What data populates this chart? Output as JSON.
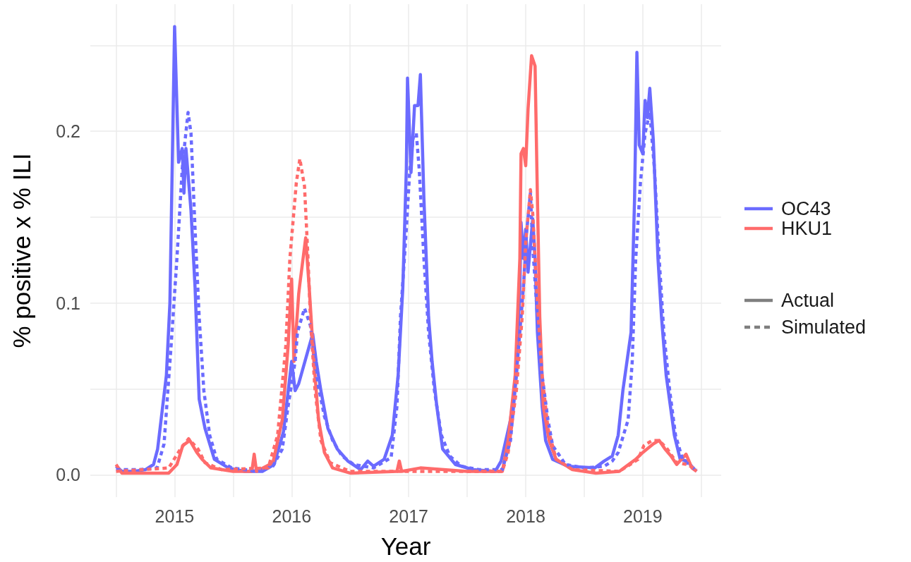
{
  "chart_data": {
    "type": "line",
    "xlabel": "Year",
    "ylabel": "% positive x % ILI",
    "xlim": [
      2014.28,
      2019.67
    ],
    "ylim": [
      -0.013,
      0.274
    ],
    "xticks": [
      {
        "value": 2014.5,
        "label": null
      },
      2015,
      {
        "value": 2015.5,
        "label": null
      },
      2016,
      {
        "value": 2016.5,
        "label": null
      },
      2017,
      {
        "value": 2017.5,
        "label": null
      },
      2018,
      {
        "value": 2018.5,
        "label": null
      },
      2019,
      {
        "value": 2019.5,
        "label": null
      }
    ],
    "yticks": [
      {
        "value": 0,
        "label": "0.0"
      },
      {
        "value": 0.05,
        "label": null
      },
      {
        "value": 0.1,
        "label": "0.1"
      },
      {
        "value": 0.15,
        "label": null
      },
      {
        "value": 0.2,
        "label": "0.2"
      },
      {
        "value": 0.25,
        "label": null
      }
    ],
    "grid": true,
    "legend": "right",
    "marker": "none",
    "series": [
      {
        "name": "OC43",
        "color": "#6b6bff",
        "line_style": "solid",
        "x": [
          2014.5,
          2014.55,
          2014.65,
          2014.75,
          2014.82,
          2014.855,
          2014.93,
          2014.96,
          2015.0,
          2015.034,
          2015.065,
          2015.08,
          2015.097,
          2015.14,
          2015.175,
          2015.21,
          2015.26,
          2015.34,
          2015.46,
          2015.6,
          2015.75,
          2015.85,
          2015.93,
          2016.0,
          2016.03,
          2016.06,
          2016.13,
          2016.18,
          2016.21,
          2016.25,
          2016.31,
          2016.39,
          2016.48,
          2016.59,
          2016.65,
          2016.7,
          2016.79,
          2016.86,
          2016.91,
          2016.95,
          2016.98,
          2016.99,
          2017.02,
          2017.05,
          2017.08,
          2017.1,
          2017.13,
          2017.17,
          2017.2,
          2017.24,
          2017.29,
          2017.4,
          2017.55,
          2017.74,
          2017.79,
          2017.87,
          2017.92,
          2017.95,
          2017.96,
          2017.98,
          2018.0,
          2018.02,
          2018.06,
          2018.08,
          2018.1,
          2018.14,
          2018.17,
          2018.23,
          2018.36,
          2018.59,
          2018.67,
          2018.74,
          2018.79,
          2018.83,
          2018.9,
          2018.93,
          2018.95,
          2018.97,
          2019.0,
          2019.02,
          2019.04,
          2019.06,
          2019.09,
          2019.13,
          2019.16,
          2019.2,
          2019.27,
          2019.32,
          2019.38,
          2019.43,
          2019.46
        ],
        "values": [
          0.005,
          0.002,
          0.002,
          0.003,
          0.006,
          0.015,
          0.058,
          0.1,
          0.261,
          0.182,
          0.19,
          0.164,
          0.19,
          0.154,
          0.109,
          0.044,
          0.027,
          0.009,
          0.004,
          0.002,
          0.002,
          0.006,
          0.025,
          0.066,
          0.049,
          0.053,
          0.07,
          0.082,
          0.066,
          0.049,
          0.027,
          0.015,
          0.008,
          0.003,
          0.008,
          0.005,
          0.009,
          0.023,
          0.058,
          0.109,
          0.178,
          0.231,
          0.176,
          0.215,
          0.215,
          0.233,
          0.161,
          0.092,
          0.066,
          0.04,
          0.015,
          0.006,
          0.003,
          0.002,
          0.008,
          0.032,
          0.058,
          0.109,
          0.147,
          0.126,
          0.143,
          0.118,
          0.149,
          0.126,
          0.083,
          0.04,
          0.02,
          0.009,
          0.005,
          0.004,
          0.008,
          0.011,
          0.023,
          0.049,
          0.083,
          0.161,
          0.246,
          0.192,
          0.187,
          0.218,
          0.208,
          0.225,
          0.195,
          0.126,
          0.092,
          0.058,
          0.023,
          0.009,
          0.008,
          0.004,
          0.002
        ]
      },
      {
        "name": "HKU1",
        "color": "#ff6b6b",
        "line_style": "solid",
        "x": [
          2014.5,
          2014.55,
          2014.95,
          2015.02,
          2015.07,
          2015.13,
          2015.19,
          2015.235,
          2015.31,
          2015.5,
          2015.66,
          2015.68,
          2015.7,
          2015.84,
          2015.92,
          2015.97,
          2016.0,
          2016.02,
          2016.06,
          2016.07,
          2016.12,
          2016.15,
          2016.19,
          2016.23,
          2016.28,
          2016.35,
          2016.5,
          2016.9,
          2016.92,
          2016.94,
          2017.1,
          2017.5,
          2017.8,
          2017.85,
          2017.91,
          2017.95,
          2017.96,
          2017.98,
          2018.0,
          2018.02,
          2018.05,
          2018.08,
          2018.1,
          2018.12,
          2018.15,
          2018.2,
          2018.26,
          2018.4,
          2018.6,
          2018.8,
          2018.86,
          2018.94,
          2019.0,
          2019.09,
          2019.14,
          2019.19,
          2019.24,
          2019.29,
          2019.37,
          2019.42,
          2019.46
        ],
        "values": [
          0.006,
          0.001,
          0.001,
          0.006,
          0.017,
          0.02,
          0.013,
          0.009,
          0.004,
          0.002,
          0.002,
          0.012,
          0.002,
          0.007,
          0.032,
          0.075,
          0.114,
          0.066,
          0.105,
          0.111,
          0.138,
          0.109,
          0.066,
          0.032,
          0.013,
          0.004,
          0.001,
          0.002,
          0.008,
          0.002,
          0.004,
          0.002,
          0.002,
          0.02,
          0.058,
          0.126,
          0.187,
          0.19,
          0.18,
          0.213,
          0.244,
          0.238,
          0.161,
          0.092,
          0.04,
          0.02,
          0.009,
          0.003,
          0.001,
          0.002,
          0.005,
          0.009,
          0.013,
          0.018,
          0.02,
          0.015,
          0.011,
          0.006,
          0.012,
          0.004,
          0.002
        ]
      },
      {
        "color": "#6b6bff",
        "line_style": "dashed",
        "x": [
          2014.5,
          2014.7,
          2014.85,
          2014.91,
          2014.97,
          2015.02,
          2015.065,
          2015.09,
          2015.115,
          2015.14,
          2015.175,
          2015.21,
          2015.25,
          2015.3,
          2015.36,
          2015.49,
          2015.7,
          2015.84,
          2015.92,
          2015.97,
          2016.03,
          2016.05,
          2016.11,
          2016.16,
          2016.21,
          2016.28,
          2016.35,
          2016.43,
          2016.53,
          2016.7,
          2016.85,
          2016.9,
          2016.93,
          2016.98,
          2017.01,
          2017.04,
          2017.065,
          2017.09,
          2017.13,
          2017.17,
          2017.22,
          2017.28,
          2017.35,
          2017.45,
          2017.6,
          2017.8,
          2017.87,
          2017.92,
          2017.98,
          2018.01,
          2018.04,
          2018.06,
          2018.1,
          2018.14,
          2018.19,
          2018.23,
          2018.34,
          2018.5,
          2018.67,
          2018.74,
          2018.79,
          2018.875,
          2018.91,
          2018.94,
          2018.98,
          2019.02,
          2019.06,
          2019.1,
          2019.14,
          2019.18,
          2019.23,
          2019.28,
          2019.34,
          2019.43,
          2019.46
        ],
        "values": [
          0.003,
          0.003,
          0.004,
          0.018,
          0.075,
          0.126,
          0.178,
          0.195,
          0.211,
          0.199,
          0.143,
          0.092,
          0.049,
          0.023,
          0.009,
          0.004,
          0.002,
          0.005,
          0.015,
          0.04,
          0.066,
          0.083,
          0.097,
          0.087,
          0.058,
          0.034,
          0.02,
          0.011,
          0.006,
          0.004,
          0.01,
          0.04,
          0.092,
          0.143,
          0.178,
          0.197,
          0.199,
          0.178,
          0.126,
          0.083,
          0.049,
          0.023,
          0.011,
          0.005,
          0.003,
          0.003,
          0.02,
          0.058,
          0.109,
          0.143,
          0.164,
          0.133,
          0.092,
          0.058,
          0.032,
          0.017,
          0.006,
          0.004,
          0.005,
          0.008,
          0.013,
          0.032,
          0.066,
          0.126,
          0.17,
          0.199,
          0.211,
          0.178,
          0.126,
          0.083,
          0.049,
          0.023,
          0.009,
          0.004,
          0.002
        ]
      },
      {
        "color": "#ff6b6b",
        "line_style": "dashed",
        "x": [
          2014.5,
          2014.95,
          2015.05,
          2015.12,
          2015.2,
          2015.26,
          2015.4,
          2015.8,
          2015.88,
          2015.95,
          2015.985,
          2016.04,
          2016.07,
          2016.11,
          2016.14,
          2016.16,
          2016.2,
          2016.25,
          2016.33,
          2016.5,
          2017.8,
          2017.85,
          2017.92,
          2017.97,
          2018.0,
          2018.04,
          2018.06,
          2018.1,
          2018.14,
          2018.19,
          2018.26,
          2018.4,
          2018.8,
          2018.96,
          2019.01,
          2019.08,
          2019.14,
          2019.21,
          2019.29,
          2019.38,
          2019.46
        ],
        "values": [
          0.002,
          0.004,
          0.015,
          0.021,
          0.015,
          0.007,
          0.003,
          0.004,
          0.023,
          0.075,
          0.126,
          0.17,
          0.184,
          0.168,
          0.126,
          0.092,
          0.049,
          0.02,
          0.007,
          0.002,
          0.002,
          0.013,
          0.049,
          0.092,
          0.135,
          0.166,
          0.152,
          0.1,
          0.058,
          0.027,
          0.009,
          0.003,
          0.002,
          0.009,
          0.017,
          0.02,
          0.02,
          0.015,
          0.007,
          0.006,
          0.003
        ]
      },
      {
        "name": "Actual",
        "color": "#7f7f7f",
        "line_style": "solid"
      },
      {
        "name": "Simulated",
        "color": "#7f7f7f",
        "line_style": "dashed"
      }
    ]
  }
}
